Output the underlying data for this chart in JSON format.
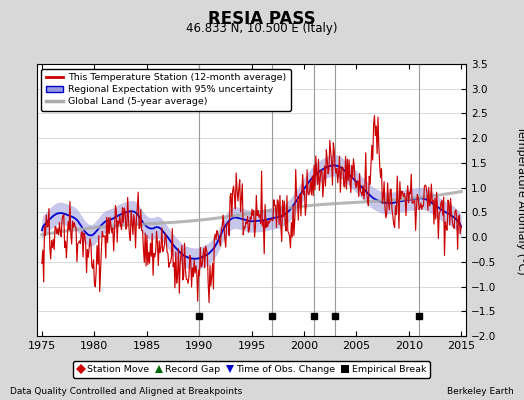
{
  "title": "RESIA PASS",
  "subtitle": "46.833 N, 10.500 E (Italy)",
  "ylabel": "Temperature Anomaly (°C)",
  "xlabel_left": "Data Quality Controlled and Aligned at Breakpoints",
  "xlabel_right": "Berkeley Earth",
  "ylim": [
    -2.0,
    3.5
  ],
  "xlim": [
    1974.5,
    2015.5
  ],
  "yticks": [
    -2,
    -1.5,
    -1,
    -0.5,
    0,
    0.5,
    1,
    1.5,
    2,
    2.5,
    3,
    3.5
  ],
  "xticks": [
    1975,
    1980,
    1985,
    1990,
    1995,
    2000,
    2005,
    2010,
    2015
  ],
  "bg_color": "#d8d8d8",
  "plot_bg_color": "#ffffff",
  "vertical_lines": [
    1990,
    1997,
    2001,
    2003,
    2011
  ],
  "empirical_breaks": [
    1990,
    1997,
    2001,
    2003,
    2011
  ],
  "station_color": "#cc0000",
  "regional_color": "#0000cc",
  "regional_fill_color": "#9999dd",
  "global_color": "#aaaaaa",
  "legend_station": "This Temperature Station (12-month average)",
  "legend_regional": "Regional Expectation with 95% uncertainty",
  "legend_global": "Global Land (5-year average)",
  "empirical_break_y": -1.6
}
